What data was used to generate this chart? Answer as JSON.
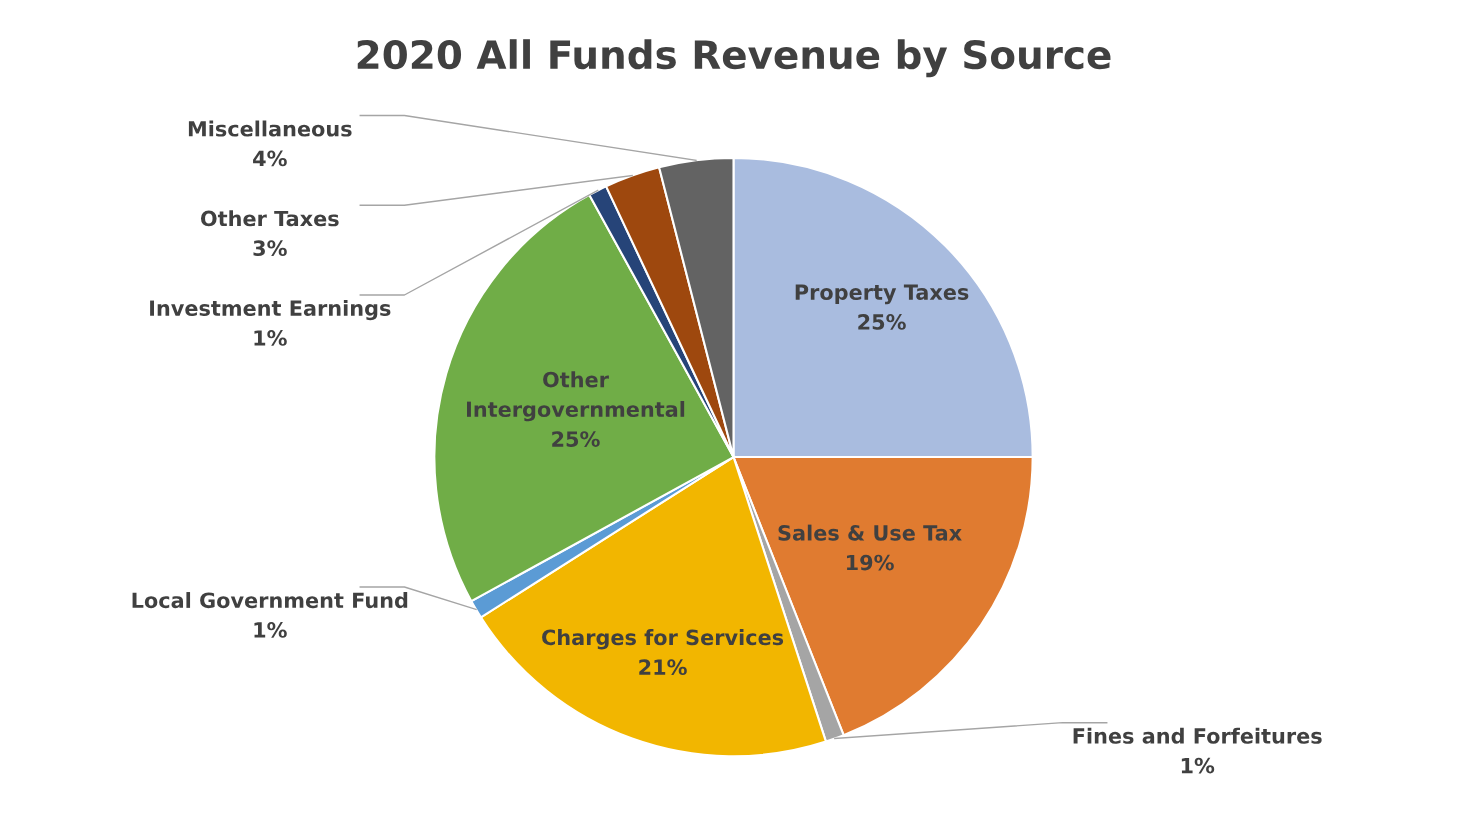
{
  "chart_data": {
    "type": "pie",
    "title": "2020 All Funds Revenue by Source",
    "categories": [
      "Property Taxes",
      "Sales & Use Tax",
      "Fines and Forfeitures",
      "Charges for Services",
      "Local Government Fund",
      "Other Intergovernmental",
      "Investment Earnings",
      "Other Taxes",
      "Miscellaneous"
    ],
    "values": [
      25,
      19,
      1,
      21,
      1,
      25,
      1,
      3,
      4
    ],
    "value_labels": [
      "25%",
      "19%",
      "1%",
      "21%",
      "1%",
      "25%",
      "1%",
      "3%",
      "4%"
    ],
    "colors": [
      "#a9bcdf",
      "#e07b30",
      "#a5a5a5",
      "#f2b600",
      "#5b9bd5",
      "#70ad47",
      "#264478",
      "#9e480e",
      "#636363"
    ],
    "legend": false
  }
}
